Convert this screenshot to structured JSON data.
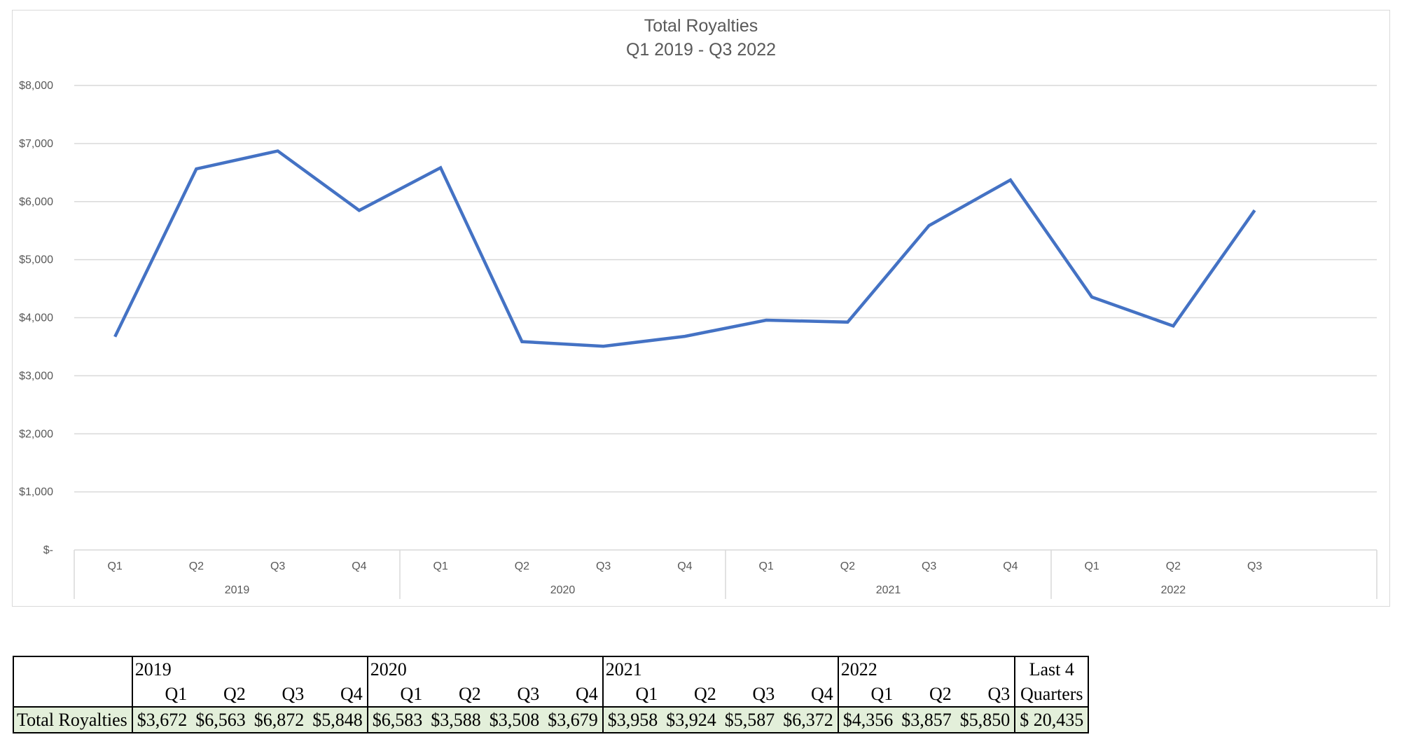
{
  "chart_data": {
    "type": "line",
    "title": "Total Royalties",
    "subtitle": "Q1 2019 - Q3 2022",
    "xlabel": "",
    "ylabel": "",
    "ylim": [
      0,
      8000
    ],
    "yticks": [
      {
        "value": 0,
        "label": "$-"
      },
      {
        "value": 1000,
        "label": "$1,000"
      },
      {
        "value": 2000,
        "label": "$2,000"
      },
      {
        "value": 3000,
        "label": "$3,000"
      },
      {
        "value": 4000,
        "label": "$4,000"
      },
      {
        "value": 5000,
        "label": "$5,000"
      },
      {
        "value": 6000,
        "label": "$6,000"
      },
      {
        "value": 7000,
        "label": "$7,000"
      },
      {
        "value": 8000,
        "label": "$8,000"
      }
    ],
    "grid": true,
    "legend": "none",
    "years": [
      {
        "label": "2019",
        "quarters": [
          "Q1",
          "Q2",
          "Q3",
          "Q4"
        ]
      },
      {
        "label": "2020",
        "quarters": [
          "Q1",
          "Q2",
          "Q3",
          "Q4"
        ]
      },
      {
        "label": "2021",
        "quarters": [
          "Q1",
          "Q2",
          "Q3",
          "Q4"
        ]
      },
      {
        "label": "2022",
        "quarters": [
          "Q1",
          "Q2",
          "Q3"
        ]
      }
    ],
    "series": [
      {
        "color": "#4472c4",
        "values": [
          3672,
          6563,
          6872,
          5848,
          6583,
          3588,
          3508,
          3679,
          3958,
          3924,
          5587,
          6372,
          4356,
          3857,
          5850
        ]
      }
    ]
  },
  "table": {
    "row_label": "Total Royalties",
    "years": [
      "2019",
      "2020",
      "2021",
      "2022"
    ],
    "quarters": [
      "Q1",
      "Q2",
      "Q3",
      "Q4",
      "Q1",
      "Q2",
      "Q3",
      "Q4",
      "Q1",
      "Q2",
      "Q3",
      "Q4",
      "Q1",
      "Q2",
      "Q3"
    ],
    "values": [
      "$3,672",
      "$6,563",
      "$6,872",
      "$5,848",
      "$6,583",
      "$3,588",
      "$3,508",
      "$3,679",
      "$3,958",
      "$3,924",
      "$5,587",
      "$6,372",
      "$4,356",
      "$3,857",
      "$5,850"
    ],
    "last4_header_line1": "Last 4",
    "last4_header_line2": "Quarters",
    "last4_value": "$ 20,435"
  }
}
